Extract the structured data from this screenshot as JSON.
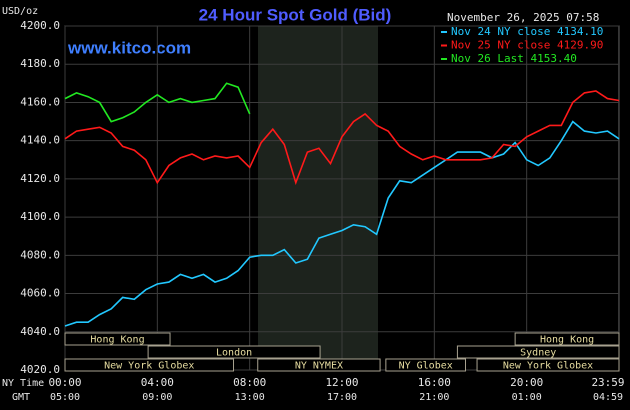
{
  "chart_data": {
    "type": "line",
    "title": "24 Hour Spot Gold (Bid)",
    "site": "www.kitco.com",
    "timestamp": "November 26, 2025 07:58",
    "y_label": "USD/oz",
    "x_row_labels": [
      "NY Time",
      "GMT"
    ],
    "x": [
      0,
      0.5,
      1,
      1.5,
      2,
      2.5,
      3,
      3.5,
      4,
      4.5,
      5,
      5.5,
      6,
      6.5,
      7,
      7.5,
      8,
      8.5,
      9,
      9.5,
      10,
      10.5,
      11,
      11.5,
      12,
      12.5,
      13,
      13.5,
      14,
      14.5,
      15,
      15.5,
      16,
      16.5,
      17,
      17.5,
      18,
      18.5,
      19,
      19.5,
      20,
      20.5,
      21,
      21.5,
      22,
      22.5,
      23,
      23.5,
      24
    ],
    "xlim": [
      0,
      24
    ],
    "xticks": [
      {
        "value": 0,
        "label": "00:00"
      },
      {
        "value": 4,
        "label": "04:00"
      },
      {
        "value": 8,
        "label": "08:00"
      },
      {
        "value": 12,
        "label": "12:00"
      },
      {
        "value": 16,
        "label": "16:00"
      },
      {
        "value": 20,
        "label": "20:00"
      },
      {
        "value": 23.983,
        "label": "23:59"
      }
    ],
    "gmt_labels": [
      "05:00",
      "09:00",
      "13:00",
      "17:00",
      "21:00",
      "01:00",
      "04:59"
    ],
    "ylim": [
      4020,
      4200
    ],
    "yticks": [
      {
        "value": 4020,
        "label": "4020.0"
      },
      {
        "value": 4040,
        "label": "4040.0"
      },
      {
        "value": 4060,
        "label": "4060.0"
      },
      {
        "value": 4080,
        "label": "4080.0"
      },
      {
        "value": 4100,
        "label": "4100.0"
      },
      {
        "value": 4120,
        "label": "4120.0"
      },
      {
        "value": 4140,
        "label": "4140.0"
      },
      {
        "value": 4160,
        "label": "4160.0"
      },
      {
        "value": 4180,
        "label": "4180.0"
      },
      {
        "value": 4200,
        "label": "4200.0"
      }
    ],
    "grid": true,
    "series": [
      {
        "name": "Nov 24 NY close 4134.10",
        "color": "#22c8ff",
        "values": [
          4043,
          4045,
          4045,
          4049,
          4052,
          4058,
          4057,
          4062,
          4065,
          4066,
          4070,
          4068,
          4070,
          4066,
          4068,
          4072,
          4079,
          4080,
          4080,
          4083,
          4076,
          4078,
          4089,
          4091,
          4093,
          4096,
          4095,
          4091,
          4110,
          4119,
          4118,
          4122,
          4126,
          4130,
          4134,
          4134,
          4134,
          4131,
          4133,
          4139,
          4130,
          4127,
          4131,
          4140,
          4150,
          4145,
          4144,
          4145,
          4141
        ]
      },
      {
        "name": "Nov 25 NY close 4129.90",
        "color": "#ff1a1a",
        "values": [
          4141,
          4145,
          4146,
          4147,
          4144,
          4137,
          4135,
          4130,
          4118,
          4127,
          4131,
          4133,
          4130,
          4132,
          4131,
          4132,
          4126,
          4139,
          4146,
          4138,
          4118,
          4134,
          4136,
          4128,
          4142,
          4150,
          4154,
          4148,
          4145,
          4137,
          4133,
          4130,
          4132,
          4130,
          4130,
          4130,
          4130,
          4131,
          4138,
          4137,
          4142,
          4145,
          4148,
          4148,
          4160,
          4165,
          4166,
          4162,
          4161
        ]
      },
      {
        "name": "Nov 26 Last 4153.40",
        "color": "#22e822",
        "values": [
          4162,
          4165,
          4163,
          4160,
          4150,
          4152,
          4155,
          4160,
          4164,
          4160,
          4162,
          4160,
          4161,
          4162,
          4170,
          4168,
          4154,
          null,
          null,
          null,
          null,
          null,
          null,
          null,
          null,
          null,
          null,
          null,
          null,
          null,
          null,
          null,
          null,
          null,
          null,
          null,
          null,
          null,
          null,
          null,
          null,
          null,
          null,
          null,
          null,
          null,
          null,
          null,
          null
        ]
      }
    ],
    "sessions": [
      [
        {
          "label": "Hong Kong",
          "start": 0,
          "end": 4.55
        },
        {
          "label": "Hong Kong",
          "start": 19.5,
          "end": 24
        }
      ],
      [
        {
          "label": "London",
          "start": 3.6,
          "end": 11.05
        },
        {
          "label": "Sydney",
          "start": 17,
          "end": 24
        }
      ],
      [
        {
          "label": "New York Globex",
          "start": 0,
          "end": 7.3
        },
        {
          "label": "NY NYMEX",
          "start": 8.35,
          "end": 13.65
        },
        {
          "label": "NY Globex",
          "start": 13.9,
          "end": 17.35
        },
        {
          "label": "New York Globex",
          "start": 17.85,
          "end": 24
        }
      ]
    ]
  }
}
